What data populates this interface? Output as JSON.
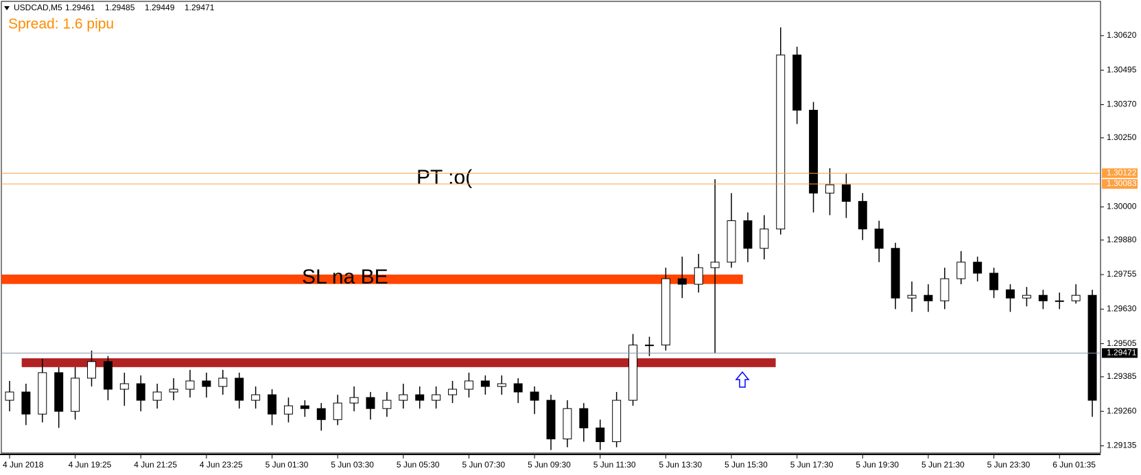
{
  "chart_data": {
    "type": "candlestick",
    "symbol": "USDCAD,M5",
    "quote": [
      1.29461,
      1.29485,
      1.29449,
      1.29471
    ],
    "annotations": [
      "Spread: 1.6 pipu",
      "PT :o("
    ],
    "categories": [
      "4 Jun 2018",
      null,
      null,
      null,
      "4 Jun 19:25",
      null,
      null,
      null,
      "4 Jun 21:25",
      null,
      null,
      null,
      "4 Jun 23:25",
      null,
      null,
      null,
      "5 Jun 01:30",
      null,
      null,
      null,
      "5 Jun 03:30",
      null,
      null,
      null,
      "5 Jun 05:30",
      null,
      null,
      null,
      "5 Jun 07:30",
      null,
      null,
      null,
      "5 Jun 09:30",
      null,
      null,
      null,
      "5 Jun 11:30",
      null,
      null,
      null,
      "5 Jun 13:30",
      null,
      null,
      null,
      "5 Jun 15:30",
      null,
      null,
      null,
      "5 Jun 17:30",
      null,
      null,
      null,
      "5 Jun 19:30",
      null,
      null,
      null,
      "5 Jun 21:30",
      null,
      null,
      null,
      "5 Jun 23:30",
      null,
      null,
      null,
      "6 Jun 01:35",
      null,
      null
    ],
    "open": [
      1.293,
      1.2933,
      1.2925,
      1.294,
      1.2926,
      1.2938,
      1.2944,
      1.2934,
      1.2936,
      1.293,
      1.2933,
      1.2934,
      1.2937,
      1.2935,
      1.2938,
      1.293,
      1.2932,
      1.2925,
      1.2928,
      1.2927,
      1.2923,
      1.2929,
      1.2931,
      1.2927,
      1.293,
      1.2932,
      1.293,
      1.2932,
      1.2934,
      1.2937,
      1.2935,
      1.2936,
      1.2933,
      1.293,
      1.2916,
      1.2927,
      1.292,
      1.2915,
      1.293,
      1.295,
      1.295,
      1.2974,
      1.2972,
      1.2978,
      1.298,
      1.2995,
      1.2985,
      1.2992,
      1.3055,
      1.3035,
      1.3005,
      1.3008,
      1.3002,
      1.2992,
      1.2985,
      1.2967,
      1.2968,
      1.2966,
      1.2974,
      1.298,
      1.2976,
      1.297,
      1.2967,
      1.2968,
      1.2966,
      1.2966,
      1.2968
    ],
    "high": [
      1.2937,
      1.2936,
      1.2945,
      1.2942,
      1.2942,
      1.2948,
      1.2946,
      1.294,
      1.2939,
      1.2936,
      1.2938,
      1.2941,
      1.294,
      1.2941,
      1.294,
      1.2935,
      1.2934,
      1.2931,
      1.293,
      1.2929,
      1.2932,
      1.2935,
      1.2933,
      1.2933,
      1.2936,
      1.2935,
      1.2935,
      1.2937,
      1.294,
      1.2939,
      1.2939,
      1.2938,
      1.2935,
      1.2932,
      1.293,
      1.2929,
      1.2923,
      1.2933,
      1.2954,
      1.2953,
      1.2978,
      1.2982,
      1.2983,
      1.301,
      1.3005,
      1.2998,
      1.2997,
      1.3065,
      1.3058,
      1.3038,
      1.3014,
      1.3012,
      1.3005,
      1.2995,
      1.2987,
      1.2973,
      1.2972,
      1.2978,
      1.2984,
      1.2982,
      1.2978,
      1.2972,
      1.2971,
      1.297,
      1.2969,
      1.2972,
      1.297
    ],
    "low": [
      1.2926,
      1.2921,
      1.2922,
      1.292,
      1.2923,
      1.2935,
      1.293,
      1.2928,
      1.2926,
      1.2927,
      1.293,
      1.2931,
      1.2931,
      1.2932,
      1.2927,
      1.2927,
      1.2921,
      1.2922,
      1.2924,
      1.2919,
      1.2921,
      1.2926,
      1.2923,
      1.2924,
      1.2927,
      1.2927,
      1.2927,
      1.2929,
      1.2931,
      1.2932,
      1.2932,
      1.2929,
      1.2925,
      1.2912,
      1.2913,
      1.2915,
      1.2912,
      1.2913,
      1.2928,
      1.2946,
      1.2948,
      1.2967,
      1.2969,
      1.2947,
      1.2978,
      1.298,
      1.2981,
      1.299,
      1.303,
      1.2998,
      1.2997,
      1.2996,
      1.2988,
      1.298,
      1.2963,
      1.2962,
      1.2962,
      1.2963,
      1.2972,
      1.2973,
      1.2967,
      1.2962,
      1.2964,
      1.2963,
      1.2963,
      1.2965,
      1.2924
    ],
    "close": [
      1.2933,
      1.2925,
      1.294,
      1.2926,
      1.2938,
      1.2944,
      1.2934,
      1.2936,
      1.293,
      1.2933,
      1.2934,
      1.2937,
      1.2935,
      1.2938,
      1.293,
      1.2932,
      1.2925,
      1.2928,
      1.2927,
      1.2923,
      1.2929,
      1.2931,
      1.2927,
      1.293,
      1.2932,
      1.293,
      1.2932,
      1.2934,
      1.2937,
      1.2935,
      1.2936,
      1.2933,
      1.293,
      1.2916,
      1.2927,
      1.292,
      1.2915,
      1.293,
      1.295,
      1.295,
      1.2974,
      1.2972,
      1.2978,
      1.298,
      1.2995,
      1.2985,
      1.2992,
      1.3055,
      1.3035,
      1.3005,
      1.3008,
      1.3002,
      1.2992,
      1.2985,
      1.2967,
      1.2968,
      1.2966,
      1.2974,
      1.298,
      1.2976,
      1.297,
      1.2967,
      1.2968,
      1.2966,
      1.2966,
      1.2968,
      1.293
    ],
    "ylim": [
      1.29109,
      1.30744
    ],
    "yticks": [
      {
        "value": 1.3062,
        "label": "1.30620"
      },
      1.30495,
      {
        "value": 1.3037,
        "label": "1.30370"
      },
      {
        "value": 1.3025,
        "label": "1.30250"
      },
      {
        "value": 1.3,
        "label": "1.30000"
      },
      {
        "value": 1.2988,
        "label": "1.29880"
      },
      1.29755,
      {
        "value": 1.2963,
        "label": "1.29630"
      },
      1.29505,
      1.29385,
      {
        "value": 1.2926,
        "label": "1.29260"
      },
      1.29135
    ],
    "levels": [
      {
        "value": 1.30122,
        "color": "#ffa040"
      },
      {
        "value": 1.30083,
        "color": "#ffa040"
      },
      {
        "value": 1.29471,
        "color": "#000000"
      }
    ],
    "zones": [
      {
        "label": "SL na BE",
        "ylim": [
          1.29721,
          1.29755
        ],
        "x": [
          0,
          45.2
        ],
        "color": "#ff4500"
      },
      {
        "ylim": [
          1.2942,
          1.29452
        ],
        "x": [
          1.24,
          47.2
        ],
        "color": "#b22222"
      }
    ]
  }
}
